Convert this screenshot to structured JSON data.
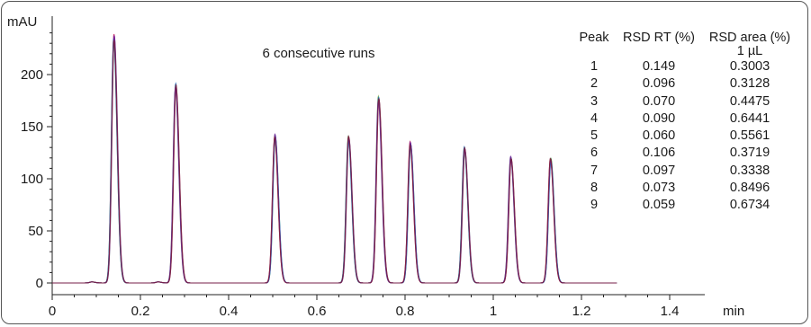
{
  "chart_data": {
    "type": "line",
    "title": "",
    "xlabel": "min",
    "ylabel": "mAU",
    "xlim": [
      0,
      1.5
    ],
    "ylim": [
      -10,
      240
    ],
    "x_ticks": [
      0,
      0.2,
      0.4,
      0.6,
      0.8,
      1,
      1.2,
      1.4
    ],
    "x_tick_labels": [
      "0",
      "0.2",
      "0.4",
      "0.6",
      "0.8",
      "1",
      "1.2",
      "1.4"
    ],
    "y_ticks": [
      0,
      50,
      100,
      150,
      200
    ],
    "y_tick_labels": [
      "0",
      "50",
      "100",
      "150",
      "200"
    ],
    "trace_end_x": 1.28,
    "peaks": [
      {
        "rt": 0.14,
        "height": 236
      },
      {
        "rt": 0.28,
        "height": 189
      },
      {
        "rt": 0.505,
        "height": 141
      },
      {
        "rt": 0.672,
        "height": 139
      },
      {
        "rt": 0.74,
        "height": 177
      },
      {
        "rt": 0.812,
        "height": 134
      },
      {
        "rt": 0.935,
        "height": 129
      },
      {
        "rt": 1.04,
        "height": 120
      },
      {
        "rt": 1.13,
        "height": 118
      }
    ],
    "minor_bumps": [
      {
        "rt": 0.09,
        "height": 1
      },
      {
        "rt": 0.24,
        "height": 1
      }
    ],
    "run_colors": [
      "#2e7d32",
      "#7cb342",
      "#c2185b",
      "#1565c0",
      "#6a1b9a",
      "#7b1f3a"
    ],
    "annotation": "6 consecutive runs",
    "grid": false
  },
  "table": {
    "headers": [
      "Peak",
      "RSD RT (%)",
      "RSD area (%)"
    ],
    "subheader": "1 µL",
    "rows": [
      [
        "1",
        "0.149",
        "0.3003"
      ],
      [
        "2",
        "0.096",
        "0.3128"
      ],
      [
        "3",
        "0.070",
        "0.4475"
      ],
      [
        "4",
        "0.090",
        "0.6441"
      ],
      [
        "5",
        "0.060",
        "0.5561"
      ],
      [
        "6",
        "0.106",
        "0.3719"
      ],
      [
        "7",
        "0.097",
        "0.3338"
      ],
      [
        "8",
        "0.073",
        "0.8496"
      ],
      [
        "9",
        "0.059",
        "0.6734"
      ]
    ]
  }
}
